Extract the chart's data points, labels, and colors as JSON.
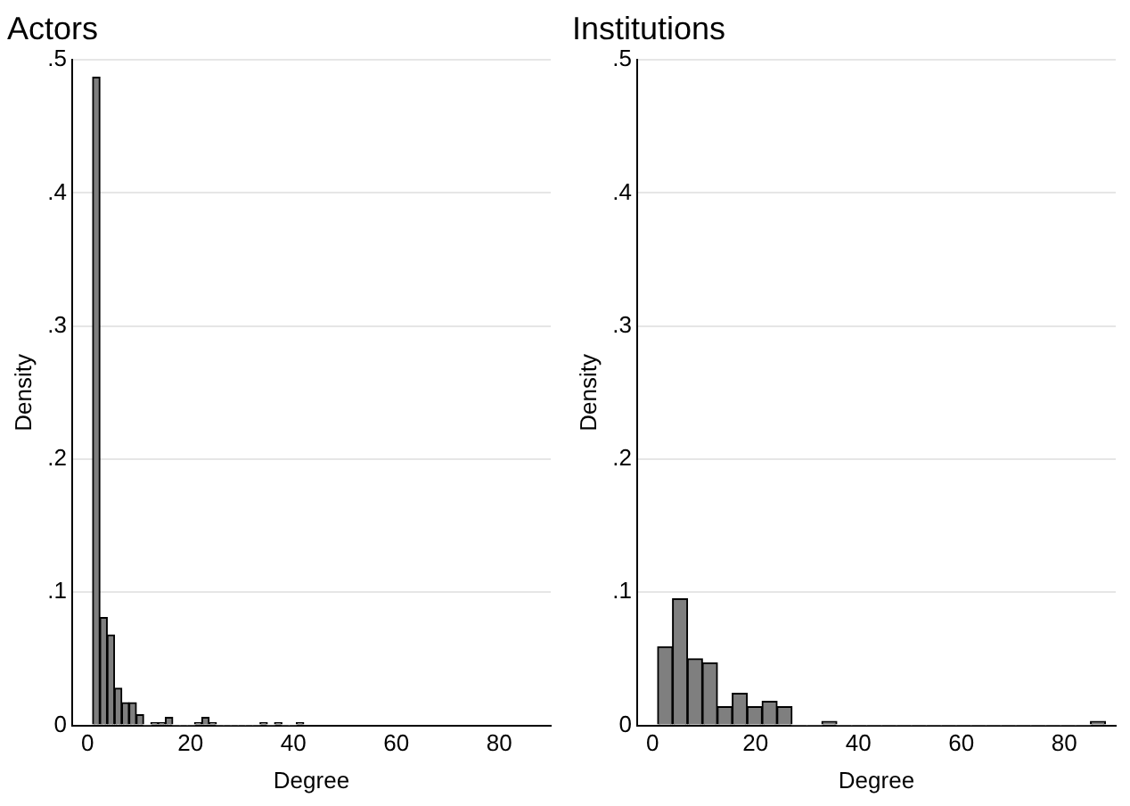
{
  "chart_data": [
    {
      "type": "histogram",
      "title": "Actors",
      "xlabel": "Degree",
      "ylabel": "Density",
      "color": "#7f7f7f",
      "bins": [
        1,
        2.41,
        3.83,
        5.24,
        6.66,
        8.07,
        9.48,
        10.9,
        12.31,
        13.72,
        15.14,
        16.55,
        17.97,
        19.38,
        20.79,
        22.21,
        23.62,
        25.03,
        26.45,
        27.86,
        29.28,
        30.69,
        32.1,
        33.52,
        34.93,
        36.34,
        37.76,
        39.17,
        40.59,
        42
      ],
      "values": [
        0.487,
        0.081,
        0.068,
        0.028,
        0.017,
        0.017,
        0.008,
        0,
        0.002,
        0.002,
        0.006,
        0,
        0,
        0,
        0.002,
        0.006,
        0.002,
        0,
        0,
        0,
        0,
        0,
        0,
        0.002,
        0,
        0.002,
        0,
        0,
        0.002
      ],
      "xlim": [
        -3,
        90
      ],
      "xticks": [
        0,
        20,
        40,
        60,
        80
      ],
      "ylim": [
        0,
        0.5
      ],
      "yticks": [
        0,
        {
          "value": 0.1,
          "label": ".1"
        },
        {
          "value": 0.2,
          "label": ".2"
        },
        {
          "value": 0.3,
          "label": ".3"
        },
        {
          "value": 0.4,
          "label": ".4"
        },
        {
          "value": 0.5,
          "label": ".5"
        }
      ],
      "grid": "y",
      "legend": false
    },
    {
      "type": "histogram",
      "title": "Institutions",
      "xlabel": "Degree",
      "ylabel": "Density",
      "color": "#7f7f7f",
      "bins": [
        1,
        3.9,
        6.8,
        9.7,
        12.6,
        15.5,
        18.4,
        21.3,
        24.2,
        27.1,
        30,
        32.9,
        35.8,
        38.7,
        41.6,
        44.5,
        47.4,
        50.3,
        53.2,
        56.1,
        59,
        61.9,
        64.8,
        67.7,
        70.6,
        73.5,
        76.4,
        79.3,
        82.2,
        85.1,
        88
      ],
      "values": [
        0.059,
        0.095,
        0.05,
        0.047,
        0.014,
        0.024,
        0.014,
        0.018,
        0.014,
        0,
        0,
        0.003,
        0,
        0,
        0,
        0,
        0,
        0,
        0,
        0,
        0,
        0,
        0,
        0,
        0,
        0,
        0,
        0,
        0,
        0.003
      ],
      "xlim": [
        -3,
        90
      ],
      "xticks": [
        0,
        20,
        40,
        60,
        80
      ],
      "ylim": [
        0,
        0.5
      ],
      "yticks": [
        0,
        {
          "value": 0.1,
          "label": ".1"
        },
        {
          "value": 0.2,
          "label": ".2"
        },
        {
          "value": 0.3,
          "label": ".3"
        },
        {
          "value": 0.4,
          "label": ".4"
        },
        {
          "value": 0.5,
          "label": ".5"
        }
      ],
      "grid": "y",
      "legend": false
    }
  ]
}
